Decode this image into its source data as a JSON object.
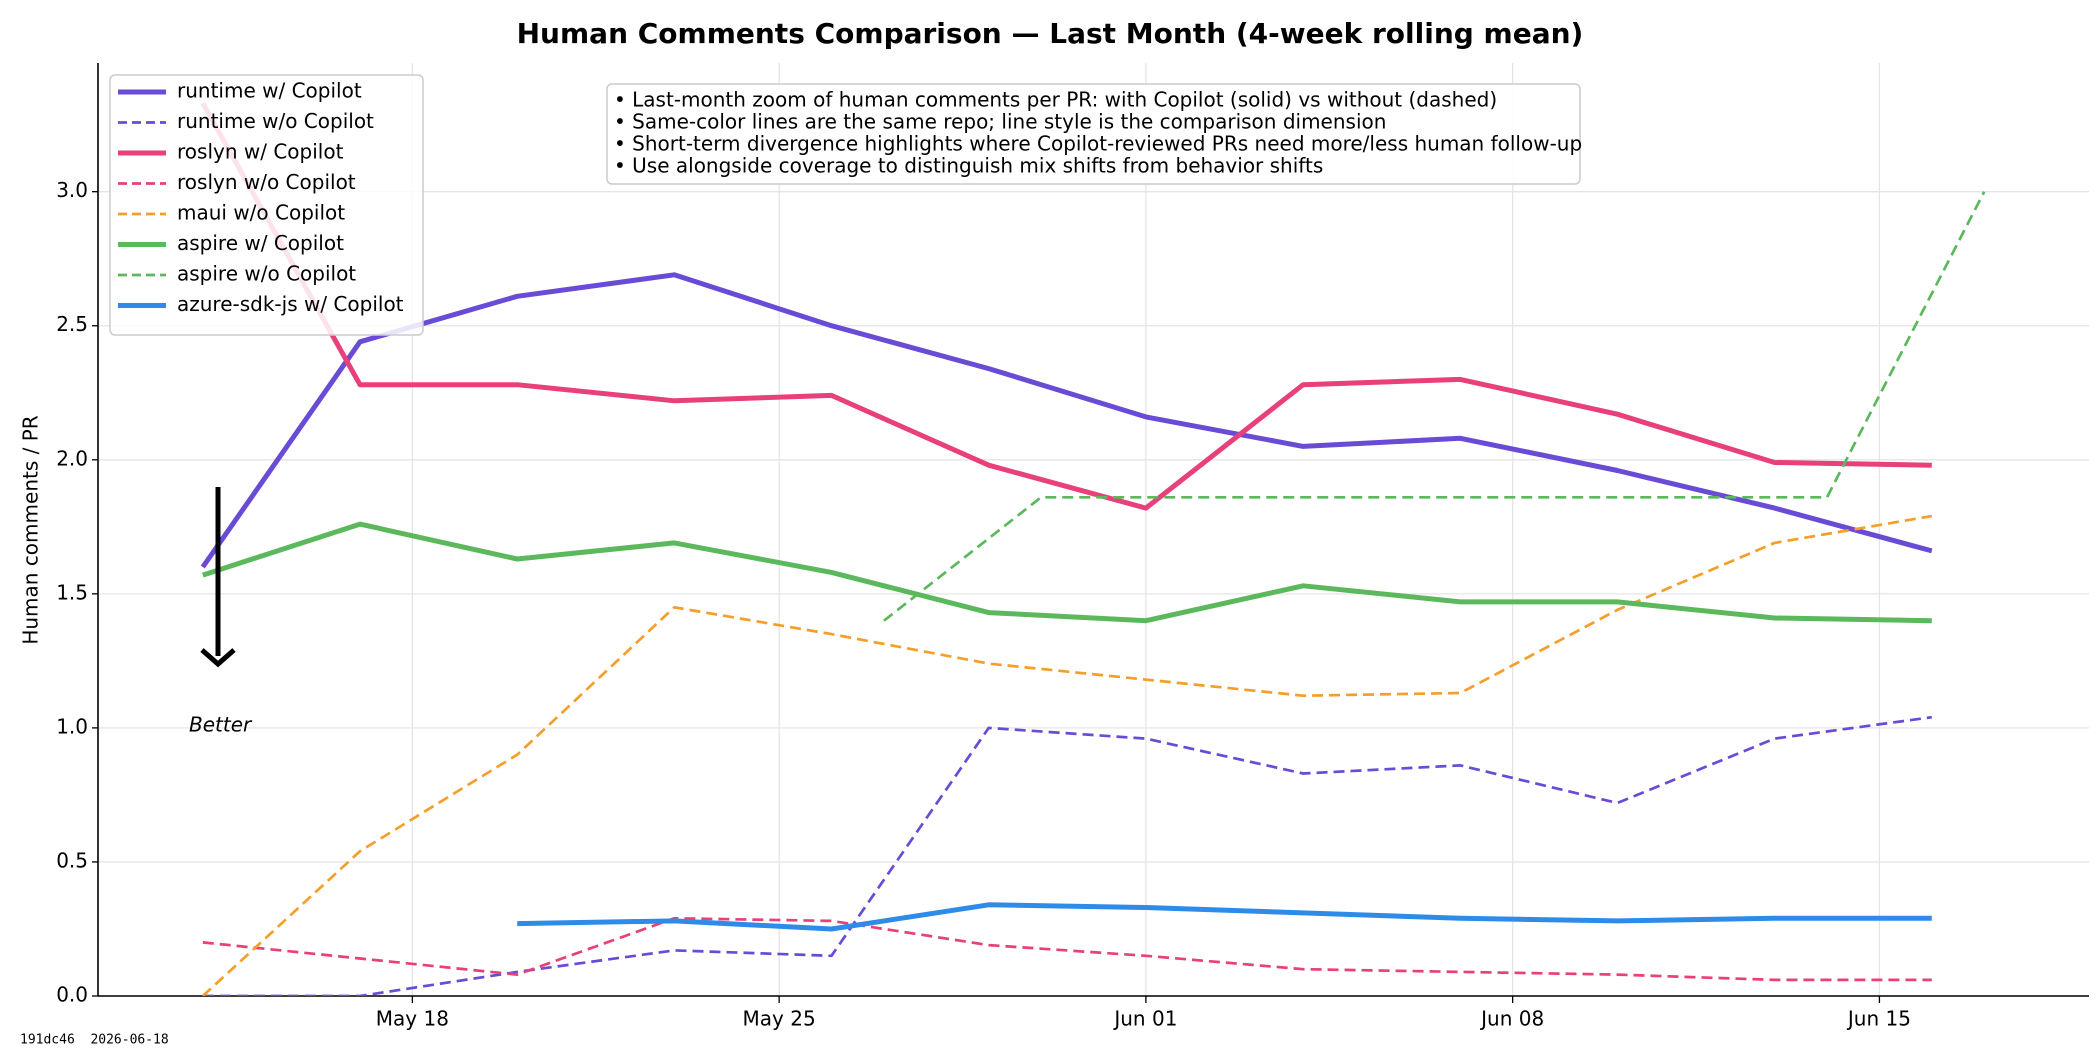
{
  "chart_data": {
    "type": "line",
    "title": "Human Comments Comparison — Last Month (4-week rolling mean)",
    "ylabel": "Human comments / PR",
    "ylim": [
      0,
      3.48
    ],
    "yticks": [
      {
        "value": 0,
        "label": "0.0"
      },
      0.5,
      {
        "value": 1,
        "label": "1.0"
      },
      1.5,
      {
        "value": 2,
        "label": "2.0"
      },
      2.5,
      {
        "value": 3,
        "label": "3.0"
      }
    ],
    "xlim": [
      "May 12",
      "Jun 19"
    ],
    "xticks": [
      "May 18",
      "May 25",
      "Jun 01",
      "Jun 08",
      "Jun 15"
    ],
    "grid": true,
    "legend": "upper left",
    "annotation": [
      "• Last-month zoom of human comments per PR: with Copilot (solid) vs without (dashed)",
      "• Same-color lines are the same repo; line style is the comparison dimension",
      "• Short-term divergence highlights where Copilot-reviewed PRs need more/less human follow-up",
      "• Use alongside coverage to distinguish mix shifts from behavior shifts"
    ],
    "arrow_label": "Better",
    "footer": "191dc46  2026-06-18",
    "series": [
      {
        "name": "runtime w/ Copilot",
        "color": "#6a4bd6",
        "linestyle": "solid",
        "x": [
          "May 14",
          "May 17",
          "May 20",
          "May 23",
          "May 26",
          "May 29",
          "Jun 01",
          "Jun 04",
          "Jun 07",
          "Jun 10",
          "Jun 13",
          "Jun 16"
        ],
        "values": [
          1.6,
          2.44,
          2.61,
          2.69,
          2.5,
          2.34,
          2.16,
          2.05,
          2.08,
          1.96,
          1.82,
          1.66
        ]
      },
      {
        "name": "runtime w/o Copilot",
        "color": "#6a4bd6",
        "linestyle": "dashed",
        "x": [
          "May 14",
          "May 17",
          "May 20",
          "May 23",
          "May 26",
          "May 29",
          "Jun 01",
          "Jun 04",
          "Jun 07",
          "Jun 10",
          "Jun 13",
          "Jun 16"
        ],
        "values": [
          0.0,
          0.0,
          0.09,
          0.17,
          0.15,
          1.0,
          0.96,
          0.83,
          0.86,
          0.72,
          0.96,
          1.04
        ]
      },
      {
        "name": "roslyn w/ Copilot",
        "color": "#e8407a",
        "linestyle": "solid",
        "x": [
          "May 14",
          "May 17",
          "May 20",
          "May 23",
          "May 26",
          "May 29",
          "Jun 01",
          "Jun 04",
          "Jun 07",
          "Jun 10",
          "Jun 13",
          "Jun 16"
        ],
        "values": [
          3.33,
          2.28,
          2.28,
          2.22,
          2.24,
          1.98,
          1.82,
          2.28,
          2.3,
          2.17,
          1.99,
          1.98
        ]
      },
      {
        "name": "roslyn w/o Copilot",
        "color": "#e8407a",
        "linestyle": "dashed",
        "x": [
          "May 14",
          "May 17",
          "May 20",
          "May 23",
          "May 26",
          "May 29",
          "Jun 01",
          "Jun 04",
          "Jun 07",
          "Jun 10",
          "Jun 13",
          "Jun 16"
        ],
        "values": [
          0.2,
          0.14,
          0.08,
          0.29,
          0.28,
          0.19,
          0.15,
          0.1,
          0.09,
          0.08,
          0.06,
          0.06
        ]
      },
      {
        "name": "maui w/o Copilot",
        "color": "#f59e2a",
        "linestyle": "dashed",
        "x": [
          "May 14",
          "May 17",
          "May 20",
          "May 23",
          "May 26",
          "May 29",
          "Jun 01",
          "Jun 04",
          "Jun 07",
          "Jun 10",
          "Jun 13",
          "Jun 16"
        ],
        "values": [
          0.0,
          0.54,
          0.9,
          1.45,
          1.35,
          1.24,
          1.18,
          1.12,
          1.13,
          1.44,
          1.69,
          1.79
        ]
      },
      {
        "name": "aspire w/ Copilot",
        "color": "#5cb85c",
        "linestyle": "solid",
        "x": [
          "May 14",
          "May 17",
          "May 20",
          "May 23",
          "May 26",
          "May 29",
          "Jun 01",
          "Jun 04",
          "Jun 07",
          "Jun 10",
          "Jun 13",
          "Jun 16"
        ],
        "values": [
          1.57,
          1.76,
          1.63,
          1.69,
          1.58,
          1.43,
          1.4,
          1.53,
          1.47,
          1.47,
          1.41,
          1.4
        ]
      },
      {
        "name": "aspire w/o Copilot",
        "color": "#5cb85c",
        "linestyle": "dashed",
        "x": [
          "May 27",
          "May 30",
          "Jun 02",
          "Jun 05",
          "Jun 08",
          "Jun 11",
          "Jun 14",
          "Jun 17"
        ],
        "values": [
          1.4,
          1.86,
          1.86,
          1.86,
          1.86,
          1.86,
          1.86,
          3.0
        ]
      },
      {
        "name": "azure-sdk-js w/ Copilot",
        "color": "#2f8be8",
        "linestyle": "solid",
        "x": [
          "May 20",
          "May 23",
          "May 26",
          "May 29",
          "Jun 01",
          "Jun 04",
          "Jun 07",
          "Jun 10",
          "Jun 13",
          "Jun 16"
        ],
        "values": [
          0.27,
          0.28,
          0.25,
          0.34,
          0.33,
          0.31,
          0.29,
          0.28,
          0.29,
          0.29
        ]
      }
    ]
  }
}
